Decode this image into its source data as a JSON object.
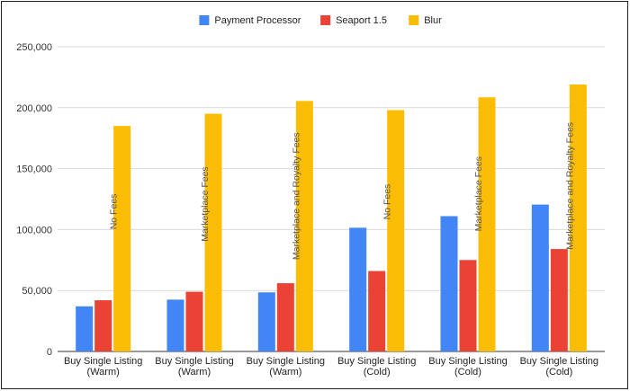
{
  "chart_data": {
    "type": "bar",
    "title": "",
    "xlabel": "",
    "ylabel": "",
    "ylim": [
      0,
      250000
    ],
    "yticks": [
      "0",
      "50,000",
      "100,000",
      "150,000",
      "200,000",
      "250,000"
    ],
    "ytick_values": [
      0,
      50000,
      100000,
      150000,
      200000,
      250000
    ],
    "grid": true,
    "legend_position": "top",
    "categories": [
      [
        "Buy Single Listing",
        "(Warm)"
      ],
      [
        "Buy Single Listing",
        "(Warm)"
      ],
      [
        "Buy Single Listing",
        "(Warm)"
      ],
      [
        "Buy Single Listing",
        "(Cold)"
      ],
      [
        "Buy Single Listing",
        "(Cold)"
      ],
      [
        "Buy Single Listing",
        "(Cold)"
      ]
    ],
    "annotations": [
      "No Fees",
      "Marketplace Fees",
      "Marketplace and Royalty Fees",
      "No Fees",
      "Marketplace Fees",
      "Marketplace and Royalty Fees"
    ],
    "series": [
      {
        "name": "Payment Processor",
        "color": "#4285F4",
        "values": [
          37000,
          42500,
          48500,
          101500,
          111000,
          120500
        ]
      },
      {
        "name": "Seaport 1.5",
        "color": "#EA4335",
        "values": [
          42000,
          49000,
          56000,
          66000,
          75000,
          84000
        ]
      },
      {
        "name": "Blur",
        "color": "#FBBC04",
        "values": [
          185000,
          195000,
          205500,
          198000,
          208500,
          219000
        ]
      }
    ]
  }
}
